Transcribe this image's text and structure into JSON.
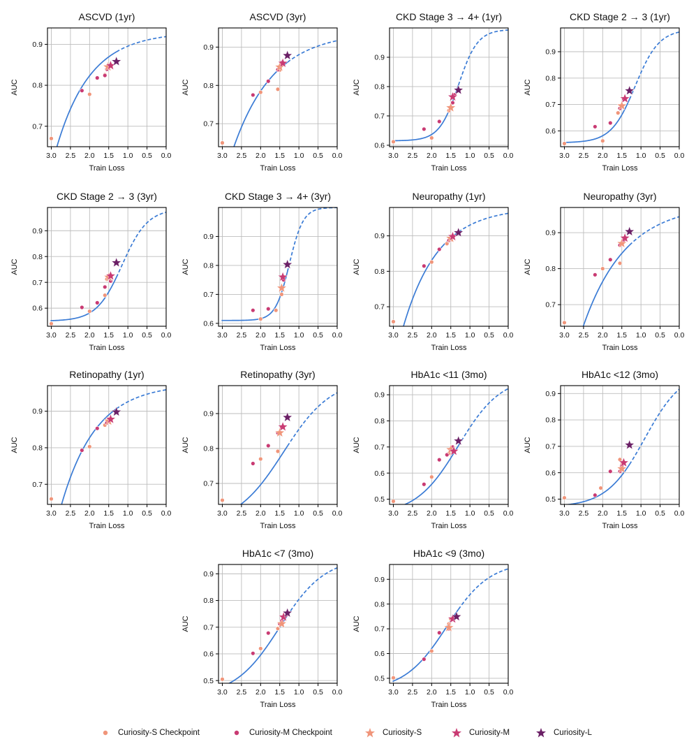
{
  "figure": {
    "xlabel": "Train Loss",
    "ylabel": "AUC",
    "colors": {
      "fit": "#3a7bd5",
      "grid": "#bdbdbd",
      "S": "#f0957a",
      "M": "#c93b73",
      "L": "#6b2066"
    }
  },
  "legend": {
    "items": [
      {
        "label": "Curiosity-S Checkpoint",
        "marker": "dot",
        "series": "S"
      },
      {
        "label": "Curiosity-M Checkpoint",
        "marker": "dot",
        "series": "M"
      },
      {
        "label": "Curiosity-S",
        "marker": "star",
        "series": "S"
      },
      {
        "label": "Curiosity-M",
        "marker": "star",
        "series": "M"
      },
      {
        "label": "Curiosity-L",
        "marker": "star",
        "series": "L"
      }
    ]
  },
  "chart_data": [
    {
      "type": "scatter",
      "title": "ASCVD (1yr)",
      "ylim": [
        0.65,
        0.94
      ],
      "yticks": [
        0.7,
        0.8,
        0.9
      ],
      "xlim": [
        3.1,
        0.0
      ],
      "xticks": [
        3.0,
        2.5,
        2.0,
        1.5,
        1.0,
        0.5,
        0.0
      ],
      "fit": {
        "shape": "sat",
        "L": 0.56,
        "U": 0.93,
        "k": 1.13
      },
      "s_checkpoints": [
        [
          3.0,
          0.67
        ],
        [
          2.0,
          0.778
        ],
        [
          1.6,
          0.826
        ]
      ],
      "m_checkpoints": [
        [
          2.2,
          0.787
        ],
        [
          1.8,
          0.818
        ],
        [
          1.6,
          0.824
        ],
        [
          1.55,
          0.839
        ]
      ],
      "stars": [
        {
          "series": "S",
          "x": 1.52,
          "y": 0.845
        },
        {
          "series": "M",
          "x": 1.45,
          "y": 0.848
        },
        {
          "series": "L",
          "x": 1.3,
          "y": 0.858
        }
      ]
    },
    {
      "type": "scatter",
      "title": "ASCVD (3yr)",
      "ylim": [
        0.64,
        0.95
      ],
      "yticks": [
        0.7,
        0.8,
        0.9
      ],
      "xlim": [
        3.1,
        0.0
      ],
      "xticks": [
        3.0,
        2.5,
        2.0,
        1.5,
        1.0,
        0.5,
        0.0
      ],
      "fit": {
        "shape": "sat",
        "L": 0.5,
        "U": 0.94,
        "k": 0.95
      },
      "s_checkpoints": [
        [
          3.0,
          0.65
        ],
        [
          2.0,
          0.782
        ],
        [
          1.55,
          0.79
        ],
        [
          1.5,
          0.84
        ]
      ],
      "m_checkpoints": [
        [
          2.2,
          0.775
        ],
        [
          1.8,
          0.811
        ],
        [
          1.55,
          0.841
        ],
        [
          1.45,
          0.86
        ]
      ],
      "stars": [
        {
          "series": "S",
          "x": 1.5,
          "y": 0.848
        },
        {
          "series": "M",
          "x": 1.42,
          "y": 0.858
        },
        {
          "series": "L",
          "x": 1.3,
          "y": 0.878
        }
      ]
    },
    {
      "type": "scatter",
      "title": "CKD Stage 3 → 4+ (1yr)",
      "ylim": [
        0.595,
        1.0
      ],
      "yticks": [
        0.6,
        0.7,
        0.8,
        0.9
      ],
      "xlim": [
        3.1,
        0.0
      ],
      "xticks": [
        3.0,
        2.5,
        2.0,
        1.5,
        1.0,
        0.5,
        0.0
      ],
      "fit": {
        "shape": "logistic",
        "L": 0.615,
        "U": 0.995,
        "x0": 1.3,
        "k": 4.0
      },
      "s_checkpoints": [
        [
          3.0,
          0.612
        ],
        [
          2.0,
          0.625
        ],
        [
          1.55,
          0.718
        ]
      ],
      "m_checkpoints": [
        [
          2.2,
          0.655
        ],
        [
          1.8,
          0.681
        ],
        [
          1.45,
          0.745
        ],
        [
          1.4,
          0.772
        ]
      ],
      "stars": [
        {
          "series": "S",
          "x": 1.5,
          "y": 0.728
        },
        {
          "series": "M",
          "x": 1.45,
          "y": 0.765
        },
        {
          "series": "L",
          "x": 1.3,
          "y": 0.788
        }
      ]
    },
    {
      "type": "scatter",
      "title": "CKD Stage 2 → 3 (1yr)",
      "ylim": [
        0.54,
        0.99
      ],
      "yticks": [
        0.6,
        0.7,
        0.8,
        0.9
      ],
      "xlim": [
        3.1,
        0.0
      ],
      "xticks": [
        3.0,
        2.5,
        2.0,
        1.5,
        1.0,
        0.5,
        0.0
      ],
      "fit": {
        "shape": "logistic",
        "L": 0.555,
        "U": 0.985,
        "x0": 1.15,
        "k": 3.2
      },
      "s_checkpoints": [
        [
          3.0,
          0.552
        ],
        [
          2.0,
          0.562
        ],
        [
          1.6,
          0.668
        ]
      ],
      "m_checkpoints": [
        [
          2.2,
          0.616
        ],
        [
          1.8,
          0.63
        ],
        [
          1.55,
          0.685
        ],
        [
          1.45,
          0.72
        ]
      ],
      "stars": [
        {
          "series": "S",
          "x": 1.5,
          "y": 0.695
        },
        {
          "series": "M",
          "x": 1.42,
          "y": 0.722
        },
        {
          "series": "L",
          "x": 1.3,
          "y": 0.752
        }
      ]
    },
    {
      "type": "scatter",
      "title": "CKD Stage 2 → 3 (3yr)",
      "ylim": [
        0.53,
        0.99
      ],
      "yticks": [
        0.6,
        0.7,
        0.8,
        0.9
      ],
      "xlim": [
        3.1,
        0.0
      ],
      "xticks": [
        3.0,
        2.5,
        2.0,
        1.5,
        1.0,
        0.5,
        0.0
      ],
      "fit": {
        "shape": "logistic",
        "L": 0.55,
        "U": 0.985,
        "x0": 1.15,
        "k": 3.0
      },
      "s_checkpoints": [
        [
          3.0,
          0.54
        ],
        [
          2.0,
          0.588
        ],
        [
          1.6,
          0.65
        ],
        [
          1.55,
          0.712
        ]
      ],
      "m_checkpoints": [
        [
          2.2,
          0.603
        ],
        [
          1.8,
          0.621
        ],
        [
          1.6,
          0.682
        ],
        [
          1.45,
          0.705
        ]
      ],
      "stars": [
        {
          "series": "S",
          "x": 1.5,
          "y": 0.72
        },
        {
          "series": "M",
          "x": 1.45,
          "y": 0.725
        },
        {
          "series": "L",
          "x": 1.3,
          "y": 0.776
        }
      ]
    },
    {
      "type": "scatter",
      "title": "CKD Stage 3 → 4+ (3yr)",
      "ylim": [
        0.59,
        1.0
      ],
      "yticks": [
        0.6,
        0.7,
        0.8,
        0.9
      ],
      "xlim": [
        3.1,
        0.0
      ],
      "xticks": [
        3.0,
        2.5,
        2.0,
        1.5,
        1.0,
        0.5,
        0.0
      ],
      "fit": {
        "shape": "logistic",
        "L": 0.61,
        "U": 1.0,
        "x0": 1.25,
        "k": 5.5
      },
      "s_checkpoints": [
        [
          2.0,
          0.615
        ],
        [
          1.6,
          0.645
        ],
        [
          1.45,
          0.7
        ]
      ],
      "m_checkpoints": [
        [
          2.2,
          0.645
        ],
        [
          1.8,
          0.65
        ],
        [
          1.45,
          0.72
        ],
        [
          1.4,
          0.75
        ]
      ],
      "stars": [
        {
          "series": "S",
          "x": 1.45,
          "y": 0.722
        },
        {
          "series": "M",
          "x": 1.42,
          "y": 0.76
        },
        {
          "series": "L",
          "x": 1.3,
          "y": 0.803
        }
      ]
    },
    {
      "type": "scatter",
      "title": "Neuropathy (1yr)",
      "ylim": [
        0.645,
        0.98
      ],
      "yticks": [
        0.7,
        0.8,
        0.9
      ],
      "xlim": [
        3.1,
        0.0
      ],
      "xticks": [
        3.0,
        2.5,
        2.0,
        1.5,
        1.0,
        0.5,
        0.0
      ],
      "fit": {
        "shape": "sat",
        "L": 0.48,
        "U": 0.98,
        "k": 1.1
      },
      "s_checkpoints": [
        [
          3.0,
          0.658
        ],
        [
          2.0,
          0.826
        ],
        [
          1.6,
          0.878
        ],
        [
          1.5,
          0.889
        ]
      ],
      "m_checkpoints": [
        [
          2.2,
          0.815
        ],
        [
          1.8,
          0.862
        ],
        [
          1.55,
          0.887
        ],
        [
          1.45,
          0.9
        ]
      ],
      "stars": [
        {
          "series": "S",
          "x": 1.5,
          "y": 0.893
        },
        {
          "series": "M",
          "x": 1.45,
          "y": 0.898
        },
        {
          "series": "L",
          "x": 1.3,
          "y": 0.909
        }
      ]
    },
    {
      "type": "scatter",
      "title": "Neuropathy (3yr)",
      "ylim": [
        0.64,
        0.97
      ],
      "yticks": [
        0.7,
        0.8,
        0.9
      ],
      "xlim": [
        3.1,
        0.0
      ],
      "xticks": [
        3.0,
        2.5,
        2.0,
        1.5,
        1.0,
        0.5,
        0.0
      ],
      "fit": {
        "shape": "sat",
        "L": 0.4,
        "U": 0.98,
        "k": 0.9
      },
      "s_checkpoints": [
        [
          3.0,
          0.65
        ],
        [
          2.0,
          0.8
        ],
        [
          1.55,
          0.815
        ],
        [
          1.5,
          0.87
        ]
      ],
      "m_checkpoints": [
        [
          2.2,
          0.783
        ],
        [
          1.8,
          0.825
        ],
        [
          1.55,
          0.865
        ],
        [
          1.45,
          0.88
        ]
      ],
      "stars": [
        {
          "series": "S",
          "x": 1.5,
          "y": 0.87
        },
        {
          "series": "M",
          "x": 1.42,
          "y": 0.885
        },
        {
          "series": "L",
          "x": 1.3,
          "y": 0.903
        }
      ]
    },
    {
      "type": "scatter",
      "title": "Retinopathy (1yr)",
      "ylim": [
        0.645,
        0.97
      ],
      "yticks": [
        0.7,
        0.8,
        0.9
      ],
      "xlim": [
        3.1,
        0.0
      ],
      "xticks": [
        3.0,
        2.5,
        2.0,
        1.5,
        1.0,
        0.5,
        0.0
      ],
      "fit": {
        "shape": "sat",
        "L": 0.48,
        "U": 0.975,
        "k": 1.1
      },
      "s_checkpoints": [
        [
          3.0,
          0.66
        ],
        [
          2.0,
          0.803
        ],
        [
          1.6,
          0.862
        ],
        [
          1.5,
          0.87
        ]
      ],
      "m_checkpoints": [
        [
          2.2,
          0.793
        ],
        [
          1.8,
          0.853
        ],
        [
          1.55,
          0.868
        ],
        [
          1.45,
          0.875
        ]
      ],
      "stars": [
        {
          "series": "S",
          "x": 1.5,
          "y": 0.873
        },
        {
          "series": "M",
          "x": 1.45,
          "y": 0.878
        },
        {
          "series": "L",
          "x": 1.3,
          "y": 0.898
        }
      ]
    },
    {
      "type": "scatter",
      "title": "Retinopathy (3yr)",
      "ylim": [
        0.64,
        0.98
      ],
      "yticks": [
        0.7,
        0.8,
        0.9
      ],
      "xlim": [
        3.1,
        0.0
      ],
      "xticks": [
        3.0,
        2.5,
        2.0,
        1.5,
        1.0,
        0.5,
        0.0
      ],
      "fit": {
        "shape": "logistic",
        "L": 0.58,
        "U": 1.0,
        "x0": 1.4,
        "k": 1.6
      },
      "s_checkpoints": [
        [
          3.0,
          0.652
        ],
        [
          2.0,
          0.77
        ],
        [
          1.55,
          0.792
        ],
        [
          1.5,
          0.845
        ]
      ],
      "m_checkpoints": [
        [
          2.2,
          0.757
        ],
        [
          1.8,
          0.808
        ],
        [
          1.55,
          0.845
        ],
        [
          1.45,
          0.86
        ]
      ],
      "stars": [
        {
          "series": "S",
          "x": 1.5,
          "y": 0.845
        },
        {
          "series": "M",
          "x": 1.42,
          "y": 0.862
        },
        {
          "series": "L",
          "x": 1.3,
          "y": 0.889
        }
      ]
    },
    {
      "type": "scatter",
      "title": "HbA1c <11 (3mo)",
      "ylim": [
        0.48,
        0.935
      ],
      "yticks": [
        0.5,
        0.6,
        0.7,
        0.8,
        0.9
      ],
      "xlim": [
        3.1,
        0.0
      ],
      "xticks": [
        3.0,
        2.5,
        2.0,
        1.5,
        1.0,
        0.5,
        0.0
      ],
      "fit": {
        "shape": "logistic",
        "L": 0.44,
        "U": 0.97,
        "x0": 1.3,
        "k": 1.8
      },
      "s_checkpoints": [
        [
          3.0,
          0.492
        ],
        [
          2.0,
          0.585
        ],
        [
          1.55,
          0.675
        ],
        [
          1.5,
          0.69
        ]
      ],
      "m_checkpoints": [
        [
          2.2,
          0.557
        ],
        [
          1.8,
          0.651
        ],
        [
          1.6,
          0.67
        ],
        [
          1.45,
          0.7
        ]
      ],
      "stars": [
        {
          "series": "S",
          "x": 1.5,
          "y": 0.69
        },
        {
          "series": "M",
          "x": 1.42,
          "y": 0.684
        },
        {
          "series": "L",
          "x": 1.3,
          "y": 0.723
        }
      ]
    },
    {
      "type": "scatter",
      "title": "HbA1c <12 (3mo)",
      "ylim": [
        0.48,
        0.93
      ],
      "yticks": [
        0.5,
        0.6,
        0.7,
        0.8,
        0.9
      ],
      "xlim": [
        3.1,
        0.0
      ],
      "xticks": [
        3.0,
        2.5,
        2.0,
        1.5,
        1.0,
        0.5,
        0.0
      ],
      "fit": {
        "shape": "logistic",
        "L": 0.47,
        "U": 0.99,
        "x0": 0.9,
        "k": 2.0
      },
      "s_checkpoints": [
        [
          3.0,
          0.505
        ],
        [
          2.05,
          0.542
        ],
        [
          1.55,
          0.65
        ],
        [
          1.5,
          0.63
        ]
      ],
      "m_checkpoints": [
        [
          2.2,
          0.515
        ],
        [
          1.8,
          0.605
        ],
        [
          1.55,
          0.605
        ],
        [
          1.5,
          0.625
        ]
      ],
      "stars": [
        {
          "series": "S",
          "x": 1.5,
          "y": 0.615
        },
        {
          "series": "M",
          "x": 1.45,
          "y": 0.638
        },
        {
          "series": "L",
          "x": 1.3,
          "y": 0.705
        }
      ]
    },
    {
      "type": "scatter",
      "title": "HbA1c <7 (3mo)",
      "ylim": [
        0.49,
        0.935
      ],
      "yticks": [
        0.5,
        0.6,
        0.7,
        0.8,
        0.9
      ],
      "xlim": [
        3.1,
        0.0
      ],
      "xticks": [
        3.0,
        2.5,
        2.0,
        1.5,
        1.0,
        0.5,
        0.0
      ],
      "fit": {
        "shape": "logistic",
        "L": 0.44,
        "U": 0.96,
        "x0": 1.5,
        "k": 1.7
      },
      "s_checkpoints": [
        [
          3.0,
          0.505
        ],
        [
          2.0,
          0.62
        ],
        [
          1.55,
          0.695
        ]
      ],
      "m_checkpoints": [
        [
          2.2,
          0.602
        ],
        [
          1.8,
          0.678
        ],
        [
          1.5,
          0.713
        ],
        [
          1.45,
          0.724
        ]
      ],
      "stars": [
        {
          "series": "S",
          "x": 1.45,
          "y": 0.713
        },
        {
          "series": "M",
          "x": 1.4,
          "y": 0.738
        },
        {
          "series": "L",
          "x": 1.3,
          "y": 0.753
        }
      ]
    },
    {
      "type": "scatter",
      "title": "HbA1c <9 (3mo)",
      "ylim": [
        0.48,
        0.96
      ],
      "yticks": [
        0.5,
        0.6,
        0.7,
        0.8,
        0.9
      ],
      "xlim": [
        3.1,
        0.0
      ],
      "xticks": [
        3.0,
        2.5,
        2.0,
        1.5,
        1.0,
        0.5,
        0.0
      ],
      "fit": {
        "shape": "logistic",
        "L": 0.45,
        "U": 0.97,
        "x0": 1.6,
        "k": 1.8
      },
      "s_checkpoints": [
        [
          3.0,
          0.502
        ],
        [
          2.0,
          0.61
        ],
        [
          1.55,
          0.72
        ],
        [
          1.5,
          0.74
        ]
      ],
      "m_checkpoints": [
        [
          2.2,
          0.577
        ],
        [
          1.8,
          0.684
        ],
        [
          1.55,
          0.7
        ],
        [
          1.45,
          0.74
        ]
      ],
      "stars": [
        {
          "series": "S",
          "x": 1.55,
          "y": 0.705
        },
        {
          "series": "M",
          "x": 1.45,
          "y": 0.74
        },
        {
          "series": "L",
          "x": 1.35,
          "y": 0.749
        }
      ]
    }
  ]
}
